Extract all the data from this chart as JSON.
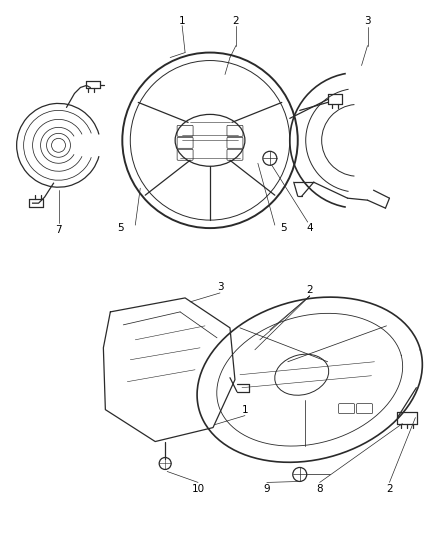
{
  "bg_color": "#ffffff",
  "line_color": "#2a2a2a",
  "label_color": "#000000",
  "fs": 7.5,
  "fig_w": 4.38,
  "fig_h": 5.33,
  "dpi": 100
}
